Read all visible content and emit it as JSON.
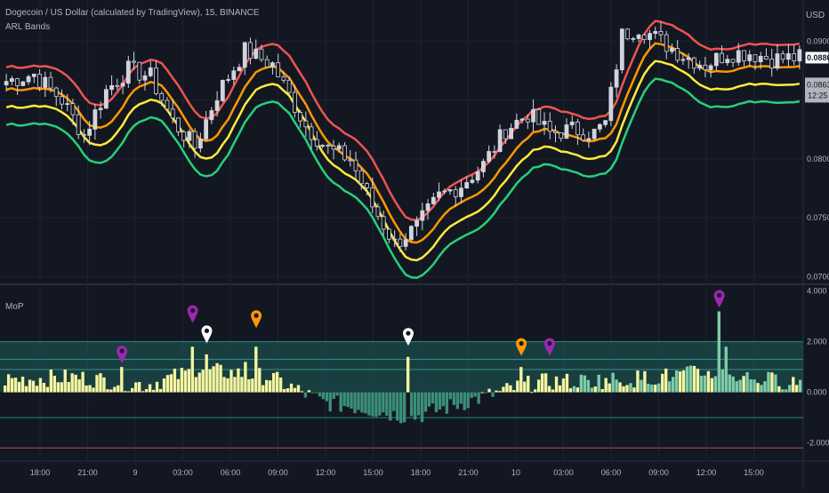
{
  "header": {
    "title": "Dogecoin / US Dollar (calculated by TradingView), 15, BINANCE",
    "indicator": "ARL Bands",
    "currency": "USD"
  },
  "sub_pane": {
    "name": "MoP"
  },
  "price_badges": {
    "last_price": "0.0886",
    "band_price": "0.0863",
    "countdown": "12:25"
  },
  "chart_data": [
    {
      "type": "candlestick",
      "title": "Dogecoin / US Dollar (calculated by TradingView), 15, BINANCE",
      "ylim": [
        0.0695,
        0.0935
      ],
      "y_ticks": [
        "0.0700",
        "0.0750",
        "0.0800",
        "0.0850",
        "0.0900"
      ],
      "x_ticks": [
        "18:00",
        "21:00",
        "9",
        "03:00",
        "06:00",
        "09:00",
        "12:00",
        "15:00",
        "18:00",
        "21:00",
        "10",
        "03:00",
        "06:00",
        "09:00",
        "12:00",
        "15:00"
      ],
      "grid": true,
      "close_path": [
        [
          0,
          0.0866
        ],
        [
          5,
          0.0872
        ],
        [
          10,
          0.085
        ],
        [
          14,
          0.082
        ],
        [
          18,
          0.0858
        ],
        [
          22,
          0.0876
        ],
        [
          26,
          0.087
        ],
        [
          30,
          0.0832
        ],
        [
          34,
          0.081
        ],
        [
          38,
          0.0855
        ],
        [
          43,
          0.0892
        ],
        [
          48,
          0.088
        ],
        [
          54,
          0.0828
        ],
        [
          58,
          0.0808
        ],
        [
          62,
          0.08
        ],
        [
          66,
          0.076
        ],
        [
          70,
          0.0728
        ],
        [
          74,
          0.0742
        ],
        [
          78,
          0.0768
        ],
        [
          82,
          0.0778
        ],
        [
          86,
          0.0795
        ],
        [
          90,
          0.0825
        ],
        [
          94,
          0.0838
        ],
        [
          98,
          0.0822
        ],
        [
          102,
          0.0825
        ],
        [
          106,
          0.0822
        ],
        [
          108,
          0.083
        ],
        [
          111,
          0.0905
        ],
        [
          114,
          0.0912
        ],
        [
          118,
          0.09
        ],
        [
          122,
          0.0888
        ],
        [
          126,
          0.088
        ],
        [
          130,
          0.089
        ],
        [
          134,
          0.089
        ],
        [
          138,
          0.0885
        ],
        [
          143,
          0.0886
        ]
      ],
      "bands": [
        {
          "color": "#ef5350",
          "offset": 0.0012
        },
        {
          "color": "#ff9800",
          "offset": -0.0007
        },
        {
          "color": "#ffeb3b",
          "offset": -0.0022
        },
        {
          "color": "#26d07c",
          "offset": -0.0037
        }
      ],
      "candle_colors": {
        "up": "#d1d4dc",
        "down": "#131722"
      }
    },
    {
      "type": "bar",
      "name": "MoP",
      "ylim": [
        -2.4,
        4.2
      ],
      "y_ticks": [
        "-2.000",
        "0.000",
        "2.000",
        "4.000"
      ],
      "levels": [
        2.0,
        1.3,
        0.9,
        -1.0,
        -2.2
      ],
      "zone": [
        0.0,
        2.0
      ],
      "bar_colors": {
        "above_zero": "#f5f5a0",
        "below_zero": "#3c8f7a",
        "in_zone": "#7fcca8"
      },
      "markers": [
        {
          "index": 33,
          "value": 1.0,
          "color": "#9c27b0"
        },
        {
          "index": 53,
          "value": 2.6,
          "color": "#9c27b0"
        },
        {
          "index": 57,
          "value": 1.8,
          "color": "#ffffff"
        },
        {
          "index": 71,
          "value": 2.4,
          "color": "#ff9800"
        },
        {
          "index": 114,
          "value": 1.7,
          "color": "#ffffff"
        },
        {
          "index": 146,
          "value": 1.3,
          "color": "#ff9800"
        },
        {
          "index": 154,
          "value": 1.3,
          "color": "#9c27b0"
        },
        {
          "index": 202,
          "value": 3.2,
          "color": "#9c27b0"
        }
      ]
    }
  ]
}
